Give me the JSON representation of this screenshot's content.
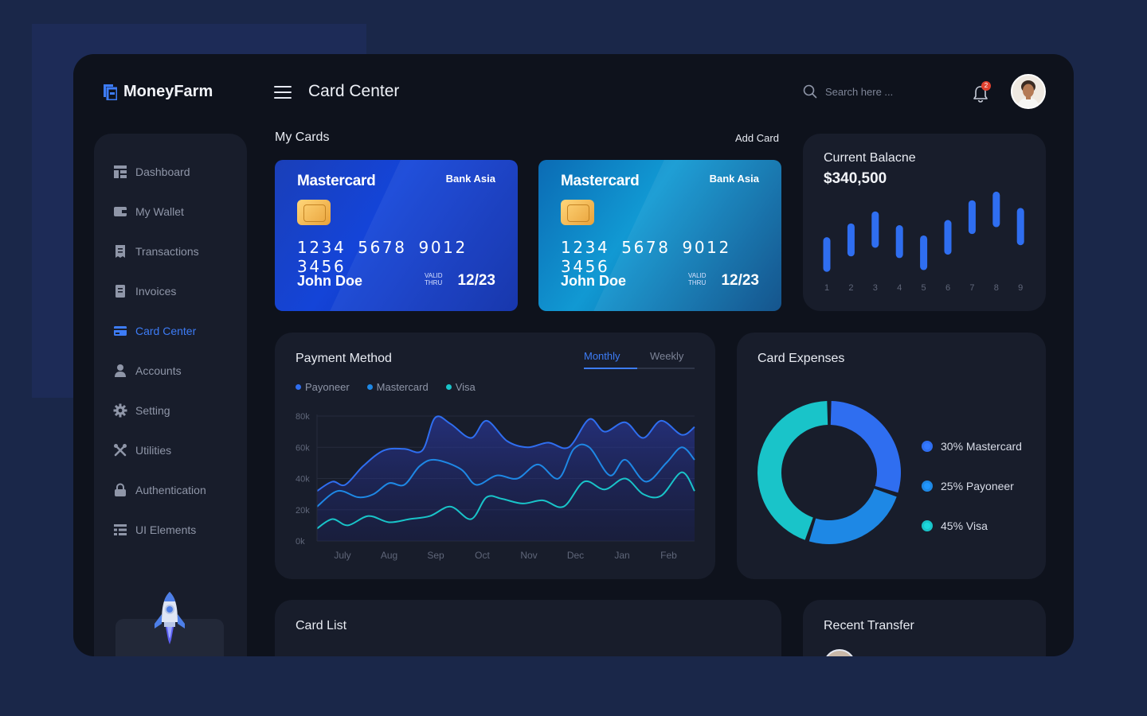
{
  "app": {
    "name": "MoneyFarm"
  },
  "header": {
    "title": "Card Center",
    "search_placeholder": "Search here ...",
    "notification_count": "2"
  },
  "sidebar": {
    "items": [
      {
        "label": "Dashboard",
        "icon": "dashboard-icon",
        "active": false
      },
      {
        "label": "My Wallet",
        "icon": "wallet-icon",
        "active": false
      },
      {
        "label": "Transactions",
        "icon": "transactions-icon",
        "active": false
      },
      {
        "label": "Invoices",
        "icon": "invoices-icon",
        "active": false
      },
      {
        "label": "Card Center",
        "icon": "card-icon",
        "active": true
      },
      {
        "label": "Accounts",
        "icon": "user-icon",
        "active": false
      },
      {
        "label": "Setting",
        "icon": "gear-icon",
        "active": false
      },
      {
        "label": "Utilities",
        "icon": "tools-icon",
        "active": false
      },
      {
        "label": "Authentication",
        "icon": "lock-icon",
        "active": false
      },
      {
        "label": "UI Elements",
        "icon": "list-icon",
        "active": false
      }
    ]
  },
  "my_cards": {
    "title": "My Cards",
    "add_label": "Add Card",
    "cards": [
      {
        "brand": "Mastercard",
        "bank": "Bank Asia",
        "number": "1234 5678 9012 3456",
        "holder": "John Doe",
        "valid_label_1": "VALID",
        "valid_label_2": "THRU",
        "expiry": "12/23"
      },
      {
        "brand": "Mastercard",
        "bank": "Bank Asia",
        "number": "1234 5678 9012 3456",
        "holder": "John Doe",
        "valid_label_1": "VALID",
        "valid_label_2": "THRU",
        "expiry": "12/23"
      }
    ]
  },
  "balance": {
    "title": "Current Balacne",
    "amount": "$340,500",
    "chart_data": {
      "type": "bar",
      "categories": [
        "1",
        "2",
        "3",
        "4",
        "5",
        "6",
        "7",
        "8",
        "9"
      ],
      "bars": [
        {
          "low": 0.1,
          "high": 0.42
        },
        {
          "low": 0.28,
          "high": 0.58
        },
        {
          "low": 0.38,
          "high": 0.72
        },
        {
          "low": 0.26,
          "high": 0.56
        },
        {
          "low": 0.12,
          "high": 0.44
        },
        {
          "low": 0.3,
          "high": 0.62
        },
        {
          "low": 0.54,
          "high": 0.85
        },
        {
          "low": 0.62,
          "high": 0.95
        },
        {
          "low": 0.41,
          "high": 0.76
        }
      ],
      "color": "#2f6ef0"
    }
  },
  "payment": {
    "title": "Payment Method",
    "tabs": {
      "active": "Monthly",
      "inactive": "Weekly"
    },
    "legend": [
      {
        "label": "Payoneer",
        "color": "#2f6ef0"
      },
      {
        "label": "Mastercard",
        "color": "#1e88e5"
      },
      {
        "label": "Visa",
        "color": "#19c4c9"
      }
    ],
    "chart_data": {
      "type": "area",
      "categories": [
        "July",
        "Aug",
        "Sep",
        "Oct",
        "Nov",
        "Dec",
        "Jan",
        "Feb"
      ],
      "ylim": [
        0,
        80
      ],
      "yticks": [
        "80k",
        "60k",
        "40k",
        "20k",
        "0k"
      ],
      "series": [
        {
          "name": "Payoneer",
          "color": "#2f6ef0",
          "x": [
            0,
            0.3,
            0.55,
            0.9,
            1.3,
            1.7,
            2.05,
            2.3,
            2.6,
            3.0,
            3.3,
            3.7,
            4.1,
            4.5,
            4.9,
            5.3,
            5.6,
            6.0,
            6.35,
            6.7,
            7.1,
            7.35
          ],
          "values": [
            32,
            38,
            36,
            48,
            58,
            59,
            58,
            79,
            75,
            66,
            77,
            64,
            60,
            63,
            60,
            78,
            70,
            76,
            66,
            77,
            68,
            73
          ]
        },
        {
          "name": "Mastercard",
          "color": "#1e88e5",
          "x": [
            0,
            0.4,
            0.8,
            1.1,
            1.4,
            1.7,
            2.0,
            2.3,
            2.8,
            3.1,
            3.5,
            3.9,
            4.3,
            4.7,
            5.0,
            5.3,
            5.7,
            6.0,
            6.4,
            6.8,
            7.1,
            7.35
          ],
          "values": [
            22,
            32,
            28,
            30,
            37,
            36,
            48,
            52,
            46,
            36,
            42,
            40,
            49,
            40,
            59,
            60,
            42,
            52,
            38,
            50,
            60,
            52
          ]
        },
        {
          "name": "Visa",
          "color": "#19c4c9",
          "x": [
            0,
            0.3,
            0.6,
            1.0,
            1.4,
            1.8,
            2.2,
            2.6,
            3.0,
            3.3,
            3.6,
            4.0,
            4.4,
            4.8,
            5.2,
            5.6,
            6.0,
            6.35,
            6.7,
            7.1,
            7.35
          ],
          "values": [
            8,
            14,
            10,
            16,
            12,
            14,
            16,
            22,
            14,
            28,
            27,
            24,
            26,
            22,
            38,
            33,
            40,
            30,
            29,
            44,
            32
          ]
        }
      ]
    }
  },
  "expenses": {
    "title": "Card Expenses",
    "chart_data": {
      "type": "pie",
      "slices": [
        {
          "label": "30% Mastercard",
          "value": 30,
          "color": "#2f6ef0"
        },
        {
          "label": "25% Payoneer",
          "value": 25,
          "color": "#1e88e5"
        },
        {
          "label": "45% Visa",
          "value": 45,
          "color": "#19c4c9"
        }
      ]
    }
  },
  "card_list": {
    "title": "Card List"
  },
  "recent_transfer": {
    "title": "Recent Transfer"
  }
}
